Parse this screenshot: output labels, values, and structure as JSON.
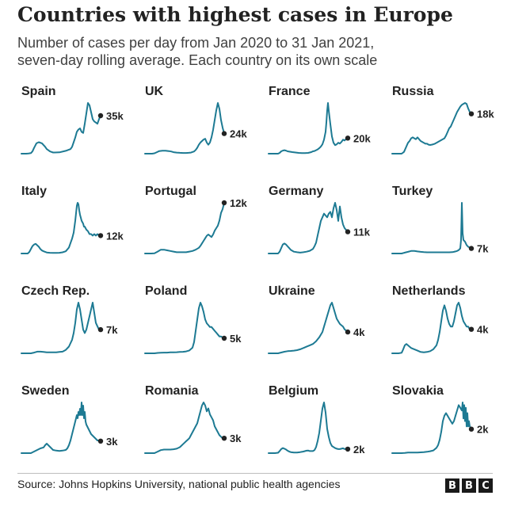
{
  "header": {
    "title": "Countries with highest cases in Europe",
    "subtitle_line1": "Number of cases per day from Jan 2020 to 31 Jan 2021,",
    "subtitle_line2": "seven-day rolling average. Each country on its own scale"
  },
  "footer": {
    "source": "Source: Johns Hopkins University, national public health agencies",
    "logo_letters": [
      "B",
      "B",
      "C"
    ]
  },
  "colors": {
    "line": "#1d7a93",
    "dot": "#222222",
    "text": "#222222"
  },
  "chart_data": [
    {
      "type": "line",
      "title": "Spain",
      "end_label": "35k",
      "y_scale": "own",
      "x": [
        0,
        3,
        6,
        9,
        12,
        14,
        16,
        19,
        22,
        26,
        30,
        32,
        34,
        36,
        38,
        40,
        42,
        48,
        56,
        62,
        64,
        66,
        68,
        70,
        72,
        74,
        76,
        78,
        80,
        82,
        84,
        86,
        88,
        90,
        92,
        94,
        96,
        98,
        100
      ],
      "values": [
        0,
        0,
        0,
        0.2,
        0.5,
        2,
        5,
        9,
        10,
        9,
        6,
        4,
        3,
        2,
        1.5,
        1,
        1,
        1.2,
        2.5,
        4,
        6,
        10,
        14,
        19,
        21,
        22,
        19,
        18,
        26,
        35,
        44,
        42,
        36,
        30,
        28,
        27,
        26,
        30,
        33
      ]
    },
    {
      "type": "line",
      "title": "UK",
      "end_label": "24k",
      "y_scale": "own",
      "x": [
        0,
        3,
        6,
        9,
        12,
        15,
        18,
        22,
        26,
        30,
        33,
        36,
        40,
        44,
        48,
        52,
        55,
        58,
        62,
        64,
        66,
        68,
        70,
        72,
        74,
        76,
        78,
        80,
        82,
        84,
        86,
        88,
        90,
        92,
        94,
        96,
        98,
        100
      ],
      "values": [
        0,
        0,
        0,
        0,
        0.5,
        2,
        3.5,
        4,
        4,
        3.5,
        3,
        2,
        1.5,
        1.2,
        1,
        1,
        1.2,
        1.5,
        3,
        5,
        8,
        12,
        15,
        17,
        19,
        20,
        15,
        12,
        15,
        22,
        32,
        45,
        58,
        68,
        60,
        45,
        35,
        27
      ]
    },
    {
      "type": "line",
      "title": "France",
      "end_label": "20k",
      "y_scale": "own",
      "x": [
        0,
        4,
        8,
        12,
        14,
        16,
        18,
        20,
        22,
        24,
        27,
        30,
        34,
        38,
        42,
        46,
        50,
        54,
        56,
        58,
        60,
        62,
        64,
        66,
        68,
        70,
        72,
        73,
        74,
        75,
        76,
        78,
        80,
        82,
        84,
        86,
        88,
        90,
        92,
        94,
        96,
        98,
        100
      ],
      "values": [
        0,
        0,
        0,
        0,
        1,
        3,
        4,
        4.5,
        4,
        3,
        2.5,
        2,
        1.5,
        1,
        0.8,
        0.8,
        1,
        2,
        3,
        3.5,
        4.5,
        5.5,
        7,
        9,
        12,
        18,
        28,
        40,
        55,
        65,
        55,
        38,
        22,
        14,
        11,
        12,
        14,
        13,
        15,
        18,
        17,
        19,
        20
      ]
    },
    {
      "type": "line",
      "title": "Russia",
      "end_label": "18k",
      "y_scale": "own",
      "x": [
        0,
        4,
        8,
        12,
        15,
        18,
        20,
        22,
        24,
        26,
        28,
        30,
        32,
        34,
        36,
        38,
        40,
        42,
        44,
        46,
        48,
        50,
        52,
        54,
        56,
        58,
        60,
        62,
        64,
        66,
        68,
        70,
        72,
        74,
        76,
        78,
        80,
        82,
        84,
        86,
        88,
        90,
        92,
        94,
        96,
        98,
        100
      ],
      "values": [
        0,
        0,
        0,
        0,
        1,
        4,
        6,
        7,
        8.5,
        9,
        8.5,
        8,
        9,
        8,
        7,
        6.5,
        6,
        5.5,
        5.5,
        5,
        4.8,
        5,
        5.2,
        5.5,
        6,
        6.5,
        7,
        7.5,
        8,
        8.5,
        10,
        12,
        14,
        15,
        17,
        19,
        21,
        23,
        24.5,
        26,
        27,
        27.5,
        28,
        27.5,
        25,
        23,
        22
      ]
    },
    {
      "type": "line",
      "title": "Italy",
      "end_label": "12k",
      "y_scale": "own",
      "x": [
        0,
        4,
        8,
        10,
        12,
        14,
        16,
        18,
        20,
        22,
        24,
        26,
        28,
        32,
        36,
        40,
        44,
        48,
        52,
        56,
        60,
        62,
        64,
        66,
        67,
        68,
        69,
        70,
        71,
        72,
        73,
        74,
        75,
        76,
        77,
        78,
        79,
        80,
        81,
        82,
        84,
        86,
        88,
        90,
        92,
        94,
        96,
        98,
        100
      ],
      "values": [
        0,
        0,
        0,
        1,
        3,
        5,
        6,
        6.5,
        5.5,
        4.5,
        3,
        2,
        1.5,
        0.7,
        0.5,
        0.4,
        0.4,
        0.5,
        0.8,
        1.5,
        4,
        7,
        10,
        14,
        18,
        22,
        27,
        32,
        34,
        33,
        29,
        26,
        24,
        22,
        21,
        20,
        18,
        18,
        17,
        16,
        15,
        13,
        13,
        12,
        13,
        12,
        13,
        12,
        12
      ]
    },
    {
      "type": "line",
      "title": "Portugal",
      "end_label": "12k",
      "y_scale": "own",
      "x": [
        0,
        4,
        8,
        12,
        16,
        20,
        24,
        28,
        32,
        36,
        40,
        44,
        48,
        52,
        56,
        60,
        64,
        68,
        70,
        72,
        74,
        76,
        78,
        80,
        82,
        84,
        86,
        88,
        90,
        92,
        94,
        96,
        98,
        100
      ],
      "values": [
        0,
        0,
        0,
        0.2,
        1.5,
        3,
        3,
        2.5,
        2,
        1.5,
        1,
        1,
        1,
        1,
        1.5,
        2,
        3,
        4.5,
        6,
        8,
        10,
        12,
        14,
        15,
        14,
        13,
        15,
        18,
        20,
        22,
        26,
        32,
        35,
        40
      ]
    },
    {
      "type": "line",
      "title": "Germany",
      "end_label": "11k",
      "y_scale": "own",
      "x": [
        0,
        4,
        8,
        12,
        14,
        16,
        18,
        20,
        22,
        24,
        26,
        28,
        32,
        36,
        40,
        44,
        48,
        52,
        56,
        58,
        60,
        62,
        64,
        66,
        68,
        70,
        72,
        74,
        76,
        78,
        80,
        82,
        84,
        86,
        88,
        90,
        92,
        94,
        96,
        98,
        100
      ],
      "values": [
        0,
        0,
        0,
        0,
        1,
        3,
        5,
        5.5,
        5,
        4,
        3,
        2,
        1,
        0.7,
        0.5,
        0.7,
        1,
        1.5,
        2.5,
        4,
        6,
        10,
        14,
        18,
        20,
        22,
        21,
        20,
        22,
        23,
        20,
        25,
        28,
        24,
        18,
        26,
        20,
        16,
        14,
        13,
        12
      ]
    },
    {
      "type": "line",
      "title": "Turkey",
      "end_label": "7k",
      "y_scale": "own",
      "x": [
        0,
        4,
        8,
        12,
        16,
        20,
        24,
        28,
        32,
        36,
        40,
        44,
        48,
        52,
        56,
        60,
        64,
        68,
        72,
        76,
        78,
        80,
        82,
        84,
        86,
        87,
        88,
        89,
        90,
        92,
        94,
        96,
        98,
        100
      ],
      "values": [
        0,
        0,
        0,
        0,
        0.5,
        1,
        1.5,
        1.5,
        1.2,
        1,
        0.8,
        0.7,
        0.7,
        0.7,
        0.7,
        0.7,
        0.7,
        0.7,
        0.7,
        0.8,
        1,
        1.2,
        1.5,
        2,
        3,
        8,
        30,
        12,
        8,
        7,
        5,
        4,
        3.5,
        3
      ]
    },
    {
      "type": "line",
      "title": "Czech Rep.",
      "end_label": "7k",
      "y_scale": "own",
      "x": [
        0,
        4,
        8,
        12,
        16,
        20,
        24,
        28,
        32,
        36,
        40,
        44,
        48,
        52,
        56,
        60,
        64,
        66,
        68,
        70,
        72,
        74,
        76,
        78,
        80,
        82,
        84,
        86,
        88,
        90,
        92,
        94,
        96,
        98,
        100
      ],
      "values": [
        0,
        0,
        0,
        0,
        0.2,
        0.5,
        0.5,
        0.4,
        0.3,
        0.3,
        0.3,
        0.3,
        0.4,
        0.5,
        1,
        2,
        4,
        6,
        9,
        13,
        15,
        13,
        10,
        7,
        6,
        7,
        9,
        11,
        13,
        15,
        12,
        9,
        8,
        7,
        7
      ]
    },
    {
      "type": "line",
      "title": "Poland",
      "end_label": "5k",
      "y_scale": "own",
      "x": [
        0,
        4,
        8,
        12,
        16,
        20,
        24,
        28,
        32,
        36,
        40,
        44,
        48,
        52,
        56,
        60,
        62,
        64,
        66,
        68,
        70,
        72,
        74,
        76,
        78,
        80,
        82,
        84,
        86,
        88,
        90,
        92,
        94,
        96,
        98,
        100
      ],
      "values": [
        0,
        0,
        0,
        0,
        0.2,
        0.3,
        0.4,
        0.4,
        0.5,
        0.5,
        0.6,
        0.7,
        0.8,
        1,
        1.5,
        3,
        6,
        12,
        18,
        24,
        27,
        25,
        22,
        18,
        16,
        15,
        14,
        14,
        13,
        12,
        11,
        10,
        9,
        9,
        8.5,
        8
      ]
    },
    {
      "type": "line",
      "title": "Ukraine",
      "end_label": "4k",
      "y_scale": "own",
      "x": [
        0,
        4,
        8,
        12,
        16,
        20,
        24,
        28,
        32,
        36,
        40,
        44,
        48,
        52,
        56,
        60,
        64,
        68,
        70,
        72,
        74,
        76,
        78,
        80,
        82,
        84,
        86,
        88,
        90,
        92,
        94,
        96,
        98,
        100
      ],
      "values": [
        0,
        0,
        0,
        0,
        0.3,
        0.6,
        0.8,
        0.9,
        1,
        1.2,
        1.5,
        2,
        2.5,
        3,
        3.5,
        4.5,
        6,
        8,
        10,
        12,
        14,
        16,
        18,
        19,
        17,
        15,
        13,
        12,
        11,
        10.5,
        10,
        9,
        8.5,
        8
      ]
    },
    {
      "type": "line",
      "title": "Netherlands",
      "end_label": "4k",
      "y_scale": "own",
      "x": [
        0,
        4,
        8,
        12,
        14,
        16,
        18,
        20,
        22,
        24,
        28,
        32,
        36,
        40,
        44,
        48,
        52,
        56,
        58,
        60,
        62,
        64,
        66,
        68,
        70,
        72,
        74,
        76,
        78,
        80,
        82,
        84,
        86,
        88,
        90,
        92,
        94,
        96,
        98,
        100
      ],
      "values": [
        0,
        0,
        0,
        0.2,
        1.5,
        3,
        3.5,
        3,
        2.5,
        2,
        1.5,
        1,
        0.5,
        0.4,
        0.5,
        0.8,
        1.5,
        3,
        5,
        8,
        12,
        16,
        18,
        16,
        13,
        11,
        10,
        10,
        12,
        15,
        18,
        19,
        17,
        14,
        12,
        11,
        10,
        10,
        9,
        9
      ]
    },
    {
      "type": "line",
      "title": "Sweden",
      "end_label": "3k",
      "y_scale": "own",
      "x": [
        0,
        4,
        8,
        12,
        16,
        20,
        24,
        28,
        30,
        32,
        34,
        36,
        38,
        40,
        44,
        48,
        52,
        56,
        58,
        60,
        62,
        64,
        66,
        68,
        70,
        71,
        72,
        73,
        74,
        75,
        76,
        77,
        78,
        79,
        80,
        81,
        82,
        84,
        86,
        88,
        90,
        92,
        94,
        96,
        98,
        100
      ],
      "values": [
        0,
        0,
        0,
        0,
        0.5,
        1,
        1.5,
        1.8,
        2.5,
        3,
        2.5,
        2,
        1.5,
        1,
        0.8,
        0.7,
        0.8,
        1,
        1.5,
        2.5,
        4,
        6,
        8,
        10,
        12,
        11,
        13,
        12,
        14,
        12,
        16,
        12,
        15,
        11,
        13,
        10,
        9,
        8,
        7,
        6,
        5.5,
        5,
        4.5,
        4,
        4,
        3.8
      ]
    },
    {
      "type": "line",
      "title": "Romania",
      "end_label": "3k",
      "y_scale": "own",
      "x": [
        0,
        4,
        8,
        12,
        16,
        20,
        24,
        28,
        32,
        36,
        40,
        44,
        46,
        48,
        50,
        52,
        54,
        56,
        58,
        60,
        62,
        64,
        66,
        68,
        70,
        72,
        74,
        76,
        78,
        80,
        82,
        84,
        86,
        88,
        90,
        92,
        94,
        96,
        98,
        100
      ],
      "values": [
        0,
        0,
        0,
        0,
        0.5,
        1,
        1.2,
        1.2,
        1.2,
        1.3,
        1.5,
        2,
        2.5,
        3,
        3.5,
        4,
        4.5,
        5,
        6,
        7,
        8,
        9,
        10,
        12,
        14,
        16,
        17,
        16,
        14,
        15,
        13,
        12,
        11,
        9,
        8,
        7,
        6,
        5.5,
        5,
        5
      ]
    },
    {
      "type": "line",
      "title": "Belgium",
      "end_label": "2k",
      "y_scale": "own",
      "x": [
        0,
        4,
        8,
        12,
        14,
        16,
        18,
        20,
        22,
        24,
        26,
        28,
        32,
        36,
        40,
        44,
        48,
        50,
        52,
        54,
        56,
        58,
        60,
        62,
        64,
        66,
        68,
        70,
        72,
        74,
        76,
        78,
        80,
        82,
        84,
        86,
        88,
        90,
        92,
        94,
        96,
        98,
        100
      ],
      "values": [
        0,
        0,
        0,
        0.2,
        1,
        2,
        2.5,
        2.2,
        1.8,
        1.2,
        0.8,
        0.5,
        0.3,
        0.3,
        0.5,
        0.8,
        1.2,
        1.3,
        1,
        1,
        1,
        1.5,
        3,
        6,
        10,
        16,
        22,
        25,
        20,
        12,
        8,
        5,
        3.5,
        3,
        2.5,
        2.2,
        2,
        2,
        2.2,
        2.4,
        2,
        2.2,
        2
      ]
    },
    {
      "type": "line",
      "title": "Slovakia",
      "end_label": "2k",
      "y_scale": "own",
      "x": [
        0,
        4,
        8,
        12,
        16,
        20,
        24,
        28,
        32,
        36,
        40,
        44,
        48,
        52,
        56,
        58,
        60,
        62,
        64,
        66,
        68,
        70,
        72,
        74,
        76,
        78,
        80,
        82,
        84,
        86,
        88,
        89,
        90,
        91,
        92,
        93,
        94,
        95,
        96,
        97,
        98,
        100
      ],
      "values": [
        0,
        0,
        0,
        0,
        0.1,
        0.2,
        0.2,
        0.2,
        0.2,
        0.3,
        0.4,
        0.5,
        0.7,
        1,
        2,
        3,
        5,
        8,
        12,
        14,
        15,
        14,
        13,
        12,
        11,
        12,
        14,
        16,
        18,
        17,
        16,
        19,
        13,
        18,
        12,
        17,
        10,
        15,
        10,
        12,
        10,
        9
      ]
    }
  ]
}
